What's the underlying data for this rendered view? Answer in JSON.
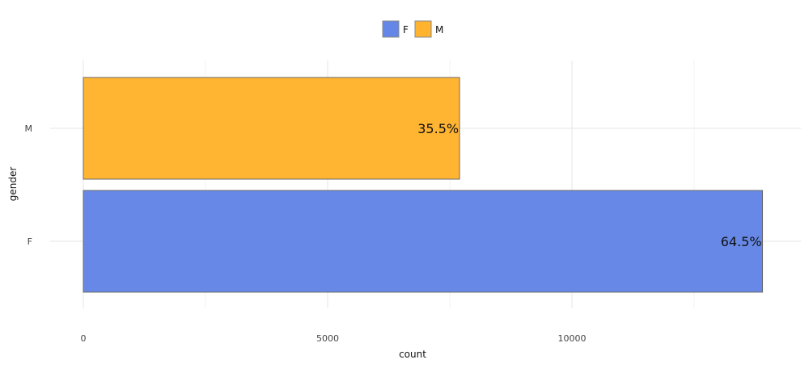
{
  "chart_data": {
    "type": "bar",
    "orientation": "horizontal",
    "categories": [
      "F",
      "M"
    ],
    "values": [
      13900,
      7700
    ],
    "data_labels": [
      "64.5%",
      "35.5%"
    ],
    "colors": [
      "#6486e6",
      "#ffb32e"
    ],
    "legend": {
      "position": "top",
      "entries": [
        "F",
        "M"
      ]
    },
    "xlabel": "count",
    "ylabel": "gender",
    "xlim": [
      0,
      14500
    ],
    "xticks": [
      0,
      5000,
      10000
    ],
    "xtick_labels": [
      "0",
      "5000",
      "10000"
    ],
    "minor_xticks": [
      2500,
      7500,
      12500
    ],
    "grid": true
  }
}
